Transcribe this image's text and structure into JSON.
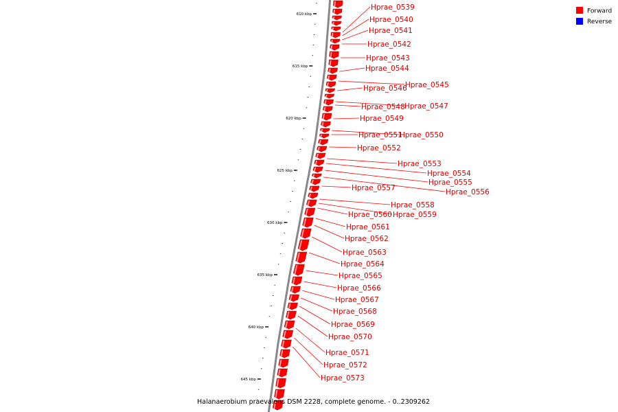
{
  "caption": "Halanaerobium praevalens DSM 2228, complete genome. - 0..2309262",
  "legend": [
    {
      "label": "Forward",
      "color": "#ff0000"
    },
    {
      "label": "Reverse",
      "color": "#0000ff"
    }
  ],
  "colors": {
    "gene": "#ff0000",
    "gene_dark": "#b00000",
    "label": "#d40000",
    "leader": "#ff0000",
    "backbone": "#888888"
  },
  "ticks": [
    {
      "kbp": 610,
      "label": "610 kbp"
    },
    {
      "kbp": 615,
      "label": "615 kbp"
    },
    {
      "kbp": 620,
      "label": "620 kbp"
    },
    {
      "kbp": 625,
      "label": "625 kbp"
    },
    {
      "kbp": 630,
      "label": "630 kbp"
    },
    {
      "kbp": 635,
      "label": "635 kbp"
    },
    {
      "kbp": 640,
      "label": "640 kbp"
    },
    {
      "kbp": 645,
      "label": "645 kbp"
    }
  ],
  "genes": [
    "Hprae_0539",
    "Hprae_0540",
    "Hprae_0541",
    "Hprae_0542",
    "Hprae_0543",
    "Hprae_0544",
    "Hprae_0545",
    "Hprae_0546",
    "Hprae_0547",
    "Hprae_0548",
    "Hprae_0549",
    "Hprae_0550",
    "Hprae_0551",
    "Hprae_0552",
    "Hprae_0553",
    "Hprae_0554",
    "Hprae_0555",
    "Hprae_0556",
    "Hprae_0557",
    "Hprae_0558",
    "Hprae_0559",
    "Hprae_0560",
    "Hprae_0561",
    "Hprae_0562",
    "Hprae_0563",
    "Hprae_0564",
    "Hprae_0565",
    "Hprae_0566",
    "Hprae_0567",
    "Hprae_0568",
    "Hprae_0569",
    "Hprae_0570",
    "Hprae_0571",
    "Hprae_0572",
    "Hprae_0573"
  ]
}
